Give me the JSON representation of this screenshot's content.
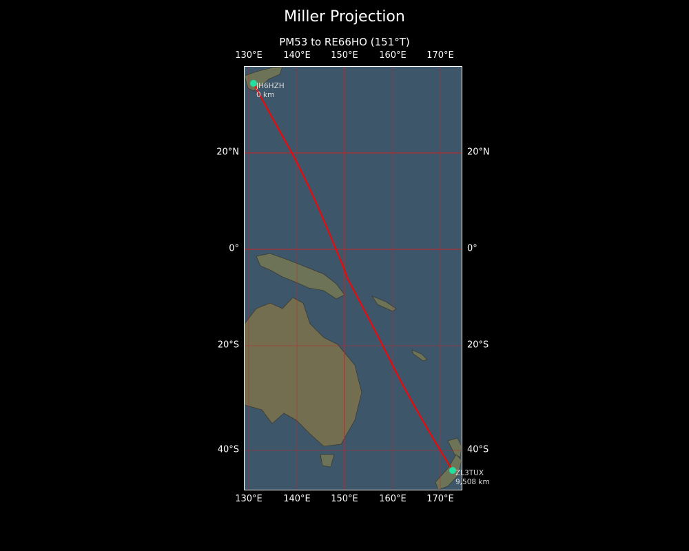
{
  "title": "Miller Projection",
  "subtitle": "PM53 to RE66HO (151°T)",
  "axes": {
    "lon_ticks": [
      "130°E",
      "140°E",
      "150°E",
      "160°E",
      "170°E"
    ],
    "lat_ticks": [
      "20°N",
      "0°",
      "20°S",
      "40°S"
    ]
  },
  "route": {
    "start": {
      "call": "JH6HZH",
      "distance": "0 km"
    },
    "end": {
      "call": "ZL3TUX",
      "distance": "9,508 km"
    }
  },
  "colors": {
    "route": "#ff0000",
    "gridlines": "#cc2222",
    "station_marker": "#22e0a0",
    "ocean": "#3e566a",
    "land": "#6f7556"
  }
}
